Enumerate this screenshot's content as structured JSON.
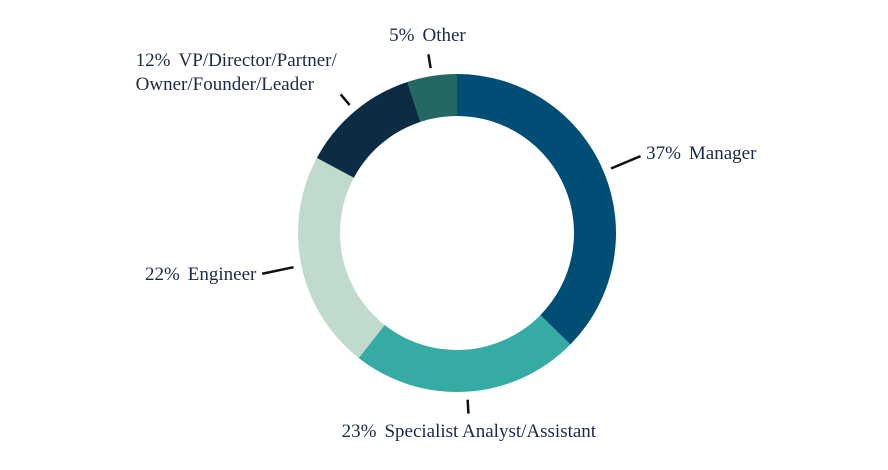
{
  "chart_data": {
    "type": "donut",
    "categories": [
      "Manager",
      "Specialist Analyst/Assistant",
      "Engineer",
      "VP/Director/Partner/\nOwner/Founder/Leader",
      "Other"
    ],
    "values": [
      37,
      23,
      22,
      12,
      5
    ],
    "value_labels": [
      "37%",
      "23%",
      "22%",
      "12%",
      "5%"
    ],
    "colors": [
      "#004e75",
      "#36aba4",
      "#c0dbcd",
      "#0b2c43",
      "#236863"
    ]
  }
}
